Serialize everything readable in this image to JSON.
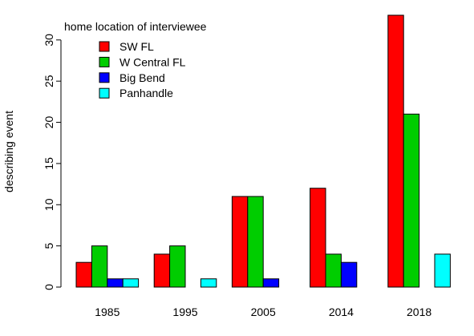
{
  "chart_data": {
    "type": "bar",
    "categories": [
      "1985",
      "1995",
      "2005",
      "2014",
      "2018"
    ],
    "series": [
      {
        "name": "SW FL",
        "color": "#ff0000",
        "values": [
          3,
          4,
          11,
          12,
          33
        ]
      },
      {
        "name": "W Central FL",
        "color": "#00cd00",
        "values": [
          5,
          5,
          11,
          4,
          21
        ]
      },
      {
        "name": "Big Bend",
        "color": "#0000ff",
        "values": [
          1,
          0,
          1,
          3,
          0
        ]
      },
      {
        "name": "Panhandle",
        "color": "#00ffff",
        "values": [
          1,
          1,
          0,
          0,
          4
        ]
      }
    ],
    "title": "",
    "xlabel": "",
    "ylabel": "describing event",
    "ylim": [
      0,
      33
    ],
    "yticks": [
      0,
      5,
      10,
      15,
      20,
      25,
      30
    ],
    "grid": false,
    "legend": {
      "title": "home location of interviewee",
      "placement": "top-left"
    }
  }
}
